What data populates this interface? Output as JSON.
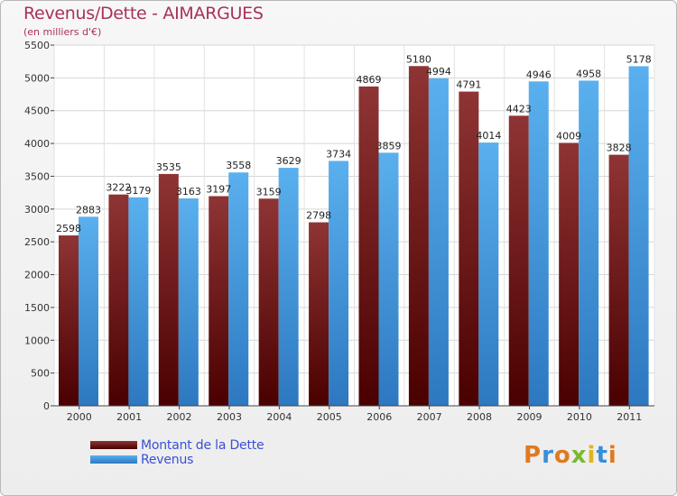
{
  "chart_data": {
    "type": "bar",
    "title": "Revenus/Dette - AIMARGUES",
    "subtitle": "(en milliers d'€)",
    "categories": [
      "2000",
      "2001",
      "2002",
      "2003",
      "2004",
      "2005",
      "2006",
      "2007",
      "2008",
      "2009",
      "2010",
      "2011"
    ],
    "series": [
      {
        "name": "Montant de la Dette",
        "color": "#7a1c1c",
        "values": [
          2598,
          3222,
          3535,
          3197,
          3159,
          2798,
          4869,
          5180,
          4791,
          4423,
          4009,
          3828
        ]
      },
      {
        "name": "Revenus",
        "color": "#4a9ee0",
        "values": [
          2883,
          3179,
          3163,
          3558,
          3629,
          3734,
          3859,
          4994,
          4014,
          4946,
          4958,
          5178
        ]
      }
    ],
    "yticks": [
      0,
      500,
      1000,
      1500,
      2000,
      2500,
      3000,
      3500,
      4000,
      4500,
      5000,
      5500
    ],
    "ylim": [
      0,
      5500
    ],
    "grid": true,
    "legend": "bottom-left"
  },
  "logo": {
    "text": "Proxiti"
  }
}
